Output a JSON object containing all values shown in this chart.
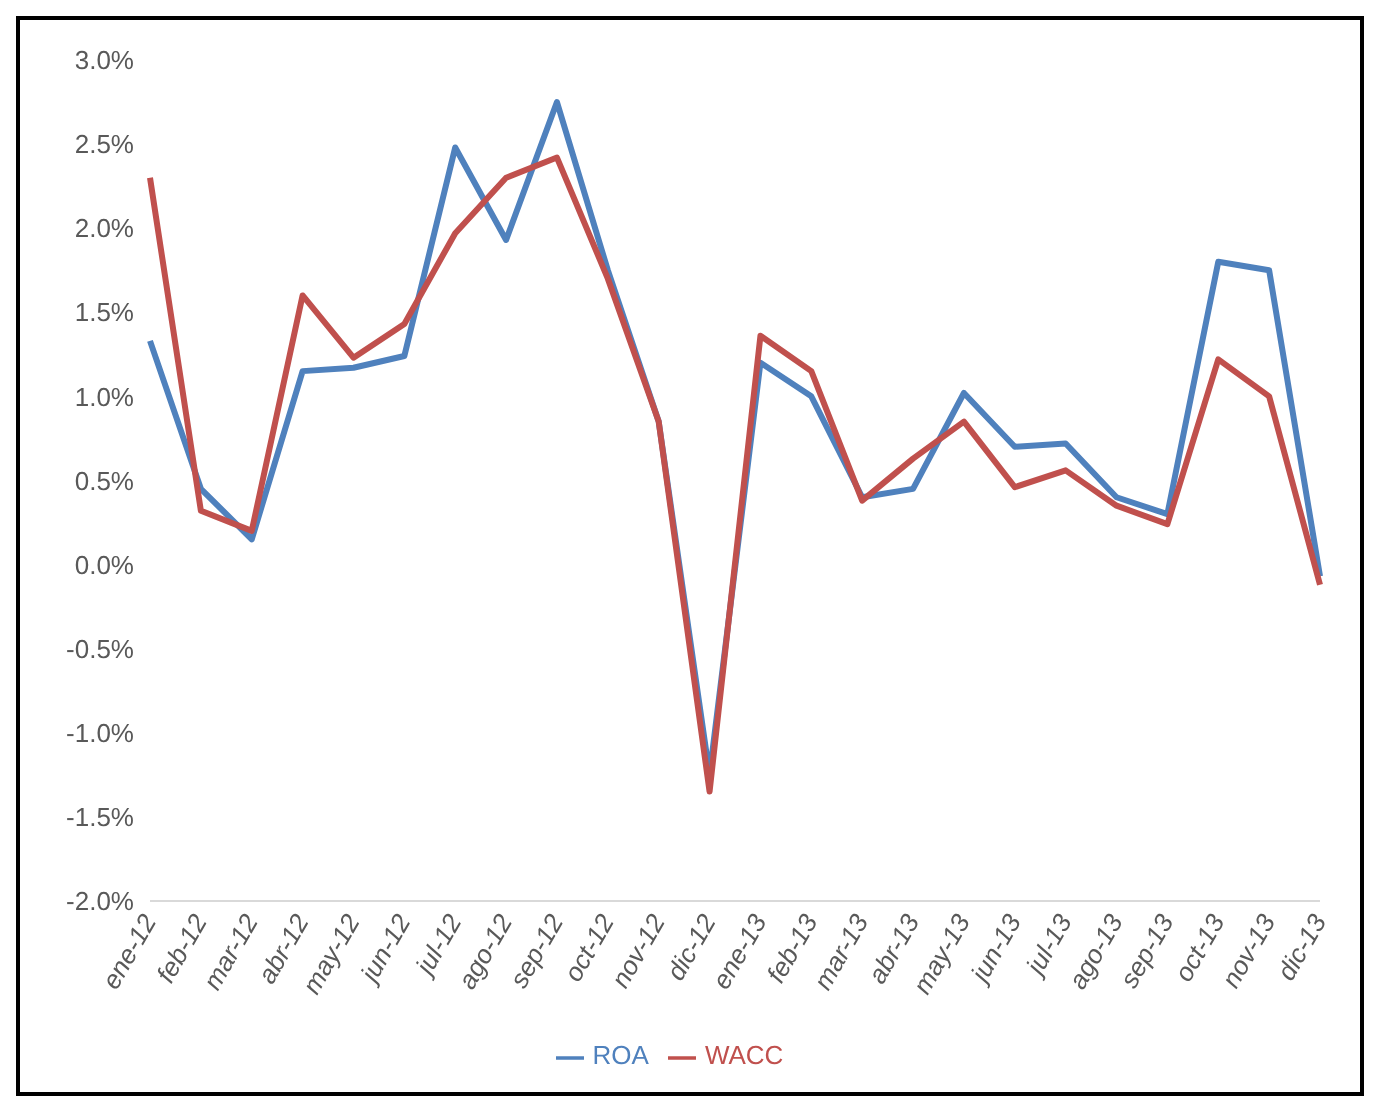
{
  "chart_data": {
    "type": "line",
    "categories": [
      "ene-12",
      "feb-12",
      "mar-12",
      "abr-12",
      "may-12",
      "jun-12",
      "jul-12",
      "ago-12",
      "sep-12",
      "oct-12",
      "nov-12",
      "dic-12",
      "ene-13",
      "feb-13",
      "mar-13",
      "abr-13",
      "may-13",
      "jun-13",
      "jul-13",
      "ago-13",
      "sep-13",
      "oct-13",
      "nov-13",
      "dic-13"
    ],
    "series": [
      {
        "name": "ROA",
        "color": "#4f81bd",
        "values": [
          1.33,
          0.45,
          0.15,
          1.15,
          1.17,
          1.24,
          2.48,
          1.93,
          2.75,
          1.75,
          0.85,
          -1.25,
          1.2,
          1.0,
          0.4,
          0.45,
          1.02,
          0.7,
          0.72,
          0.4,
          0.3,
          1.8,
          1.75,
          -0.07
        ]
      },
      {
        "name": "WACC",
        "color": "#c0504d",
        "values": [
          2.3,
          0.32,
          0.2,
          1.6,
          1.23,
          1.43,
          1.97,
          2.3,
          2.42,
          1.7,
          0.85,
          -1.35,
          1.36,
          1.15,
          0.38,
          0.63,
          0.85,
          0.46,
          0.56,
          0.35,
          0.24,
          1.22,
          1.0,
          -0.12
        ]
      }
    ],
    "ylim": [
      -2,
      3
    ],
    "yticks": [
      {
        "value": -2,
        "label": "-2.0%"
      },
      {
        "value": -1.5,
        "label": "-1.5%"
      },
      {
        "value": -1,
        "label": "-1.0%"
      },
      {
        "value": -0.5,
        "label": "-0.5%"
      },
      {
        "value": 0,
        "label": "0.0%"
      },
      {
        "value": 0.5,
        "label": "0.5%"
      },
      {
        "value": 1,
        "label": "1.0%"
      },
      {
        "value": 1.5,
        "label": "1.5%"
      },
      {
        "value": 2,
        "label": "2.0%"
      },
      {
        "value": 2.5,
        "label": "2.5%"
      },
      {
        "value": 3,
        "label": "3.0%"
      }
    ],
    "grid": false,
    "legend": "bottom",
    "marker": "none",
    "line_style": "solid"
  }
}
